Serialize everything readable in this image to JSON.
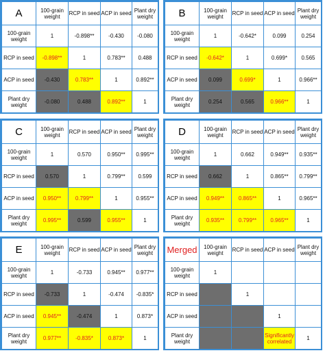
{
  "colors": {
    "border": "#3b8fd6",
    "highlight": "#ffff00",
    "shade": "#6e6e6e",
    "text_highlight": "#e02020"
  },
  "headers": [
    "100-grain weight",
    "RCP in seed",
    "ACP in seed",
    "Plant dry weight"
  ],
  "panels": [
    {
      "label": "A",
      "rows": [
        {
          "label": "100-grain weight",
          "cells": [
            {
              "v": "1",
              "s": ""
            },
            {
              "v": "-0.898**",
              "s": ""
            },
            {
              "v": "-0.430",
              "s": ""
            },
            {
              "v": "-0.080",
              "s": ""
            }
          ]
        },
        {
          "label": "RCP in seed",
          "cells": [
            {
              "v": "-0.898**",
              "s": "yellow"
            },
            {
              "v": "1",
              "s": ""
            },
            {
              "v": "0.783**",
              "s": ""
            },
            {
              "v": "0.488",
              "s": ""
            }
          ]
        },
        {
          "label": "ACP in seed",
          "cells": [
            {
              "v": "-0.430",
              "s": "gray"
            },
            {
              "v": "0.783**",
              "s": "yellow"
            },
            {
              "v": "1",
              "s": ""
            },
            {
              "v": "0.892**",
              "s": ""
            }
          ]
        },
        {
          "label": "Plant dry weight",
          "cells": [
            {
              "v": "-0.080",
              "s": "gray"
            },
            {
              "v": "0.488",
              "s": "gray"
            },
            {
              "v": "0.892**",
              "s": "yellow"
            },
            {
              "v": "1",
              "s": ""
            }
          ]
        }
      ]
    },
    {
      "label": "B",
      "rows": [
        {
          "label": "100-grain weight",
          "cells": [
            {
              "v": "1",
              "s": ""
            },
            {
              "v": "-0.642*",
              "s": ""
            },
            {
              "v": "0.099",
              "s": ""
            },
            {
              "v": "0.254",
              "s": ""
            }
          ]
        },
        {
          "label": "RCP in seed",
          "cells": [
            {
              "v": "-0.642*",
              "s": "yellow"
            },
            {
              "v": "1",
              "s": ""
            },
            {
              "v": "0.699*",
              "s": ""
            },
            {
              "v": "0.565",
              "s": ""
            }
          ]
        },
        {
          "label": "ACP in seed",
          "cells": [
            {
              "v": "0.099",
              "s": "gray"
            },
            {
              "v": "0.699*",
              "s": "yellow"
            },
            {
              "v": "1",
              "s": ""
            },
            {
              "v": "0.966**",
              "s": ""
            }
          ]
        },
        {
          "label": "Plant dry weight",
          "cells": [
            {
              "v": "0.254",
              "s": "gray"
            },
            {
              "v": "0.565",
              "s": "gray"
            },
            {
              "v": "0.966**",
              "s": "yellow"
            },
            {
              "v": "1",
              "s": ""
            }
          ]
        }
      ]
    },
    {
      "label": "C",
      "rows": [
        {
          "label": "100-grain weight",
          "cells": [
            {
              "v": "1",
              "s": ""
            },
            {
              "v": "0.570",
              "s": ""
            },
            {
              "v": "0.950**",
              "s": ""
            },
            {
              "v": "0.995**",
              "s": ""
            }
          ]
        },
        {
          "label": "RCP in seed",
          "cells": [
            {
              "v": "0.570",
              "s": "gray"
            },
            {
              "v": "1",
              "s": ""
            },
            {
              "v": "0.799**",
              "s": ""
            },
            {
              "v": "0.599",
              "s": ""
            }
          ]
        },
        {
          "label": "ACP in seed",
          "cells": [
            {
              "v": "0.950**",
              "s": "yellow"
            },
            {
              "v": "0.799**",
              "s": "yellow"
            },
            {
              "v": "1",
              "s": ""
            },
            {
              "v": "0.955**",
              "s": ""
            }
          ]
        },
        {
          "label": "Plant dry weight",
          "cells": [
            {
              "v": "0.995**",
              "s": "yellow"
            },
            {
              "v": "0.599",
              "s": "gray"
            },
            {
              "v": "0.955**",
              "s": "yellow"
            },
            {
              "v": "1",
              "s": ""
            }
          ]
        }
      ]
    },
    {
      "label": "D",
      "rows": [
        {
          "label": "100-grain weight",
          "cells": [
            {
              "v": "1",
              "s": ""
            },
            {
              "v": "0.662",
              "s": ""
            },
            {
              "v": "0.949**",
              "s": ""
            },
            {
              "v": "0.935**",
              "s": ""
            }
          ]
        },
        {
          "label": "RCP in seed",
          "cells": [
            {
              "v": "0.662",
              "s": "gray"
            },
            {
              "v": "1",
              "s": ""
            },
            {
              "v": "0.865**",
              "s": ""
            },
            {
              "v": "0.799**",
              "s": ""
            }
          ]
        },
        {
          "label": "ACP in seed",
          "cells": [
            {
              "v": "0.949**",
              "s": "yellow"
            },
            {
              "v": "0.865**",
              "s": "yellow"
            },
            {
              "v": "1",
              "s": ""
            },
            {
              "v": "0.965**",
              "s": ""
            }
          ]
        },
        {
          "label": "Plant dry weight",
          "cells": [
            {
              "v": "0.935**",
              "s": "yellow"
            },
            {
              "v": "0.799**",
              "s": "yellow"
            },
            {
              "v": "0.965**",
              "s": "yellow"
            },
            {
              "v": "1",
              "s": ""
            }
          ]
        }
      ]
    },
    {
      "label": "E",
      "rows": [
        {
          "label": "100-grain weight",
          "cells": [
            {
              "v": "1",
              "s": ""
            },
            {
              "v": "-0.733",
              "s": ""
            },
            {
              "v": "0.945**",
              "s": ""
            },
            {
              "v": "0.977**",
              "s": ""
            }
          ]
        },
        {
          "label": "RCP in seed",
          "cells": [
            {
              "v": "-0.733",
              "s": "gray"
            },
            {
              "v": "1",
              "s": ""
            },
            {
              "v": "-0.474",
              "s": ""
            },
            {
              "v": "-0.835*",
              "s": ""
            }
          ]
        },
        {
          "label": "ACP in seed",
          "cells": [
            {
              "v": "0.945**",
              "s": "yellow"
            },
            {
              "v": "-0.474",
              "s": "gray"
            },
            {
              "v": "1",
              "s": ""
            },
            {
              "v": "0.873*",
              "s": ""
            }
          ]
        },
        {
          "label": "Plant dry weight",
          "cells": [
            {
              "v": "0.977**",
              "s": "yellow"
            },
            {
              "v": "-0.835*",
              "s": "yellow"
            },
            {
              "v": "0.873*",
              "s": "yellow"
            },
            {
              "v": "1",
              "s": ""
            }
          ]
        }
      ]
    },
    {
      "label": "Merged",
      "rows": [
        {
          "label": "100-grain weight",
          "cells": [
            {
              "v": "1",
              "s": ""
            },
            {
              "v": "",
              "s": ""
            },
            {
              "v": "",
              "s": ""
            },
            {
              "v": "",
              "s": ""
            }
          ]
        },
        {
          "label": "RCP in seed",
          "cells": [
            {
              "v": "",
              "s": "gray"
            },
            {
              "v": "1",
              "s": ""
            },
            {
              "v": "",
              "s": ""
            },
            {
              "v": "",
              "s": ""
            }
          ]
        },
        {
          "label": "ACP in seed",
          "cells": [
            {
              "v": "",
              "s": "gray"
            },
            {
              "v": "",
              "s": "gray"
            },
            {
              "v": "1",
              "s": ""
            },
            {
              "v": "",
              "s": ""
            }
          ]
        },
        {
          "label": "Plant dry weight",
          "cells": [
            {
              "v": "",
              "s": "gray"
            },
            {
              "v": "",
              "s": "gray"
            },
            {
              "v": "Significantly correlated",
              "s": "yellow"
            },
            {
              "v": "1",
              "s": ""
            }
          ]
        }
      ]
    }
  ]
}
